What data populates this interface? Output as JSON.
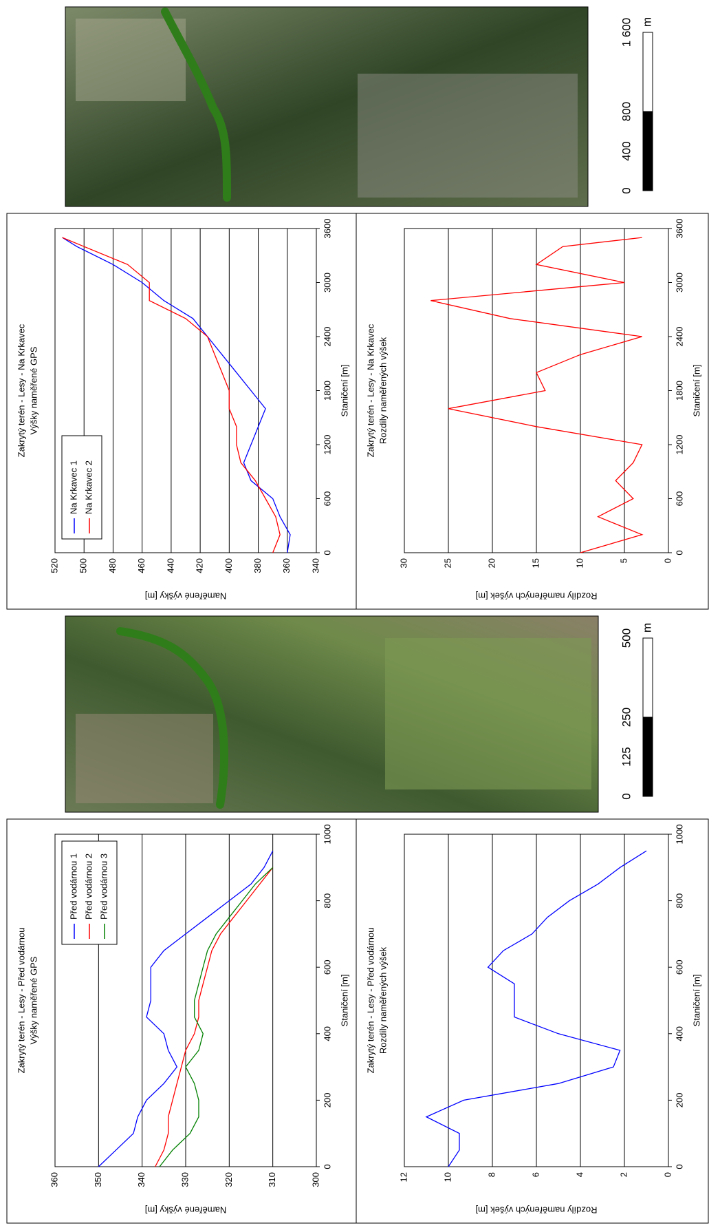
{
  "chart_data": [
    {
      "type": "line",
      "title": "Zakrytý terén - Lesy - Před vodárnou",
      "subtitle": "Výšky naměřené GPS",
      "xlabel": "Staničení [m]",
      "ylabel": "Naměřené výšky [m]",
      "x": [
        0,
        50,
        100,
        150,
        200,
        250,
        300,
        350,
        400,
        450,
        500,
        550,
        600,
        650,
        700,
        750,
        800,
        850,
        900,
        950
      ],
      "series": [
        {
          "name": "Před vodárnou 1",
          "color": "#0000ff",
          "values": [
            350,
            346,
            342,
            341,
            339,
            335,
            332,
            334,
            335,
            339,
            338,
            338,
            338,
            335,
            330,
            325,
            320,
            315,
            312,
            310
          ]
        },
        {
          "name": "Před vodárnou 2",
          "color": "#ff0000",
          "values": [
            337,
            335,
            334,
            334,
            333,
            332,
            331,
            330,
            328,
            327,
            327,
            326,
            325,
            324,
            322,
            319,
            316,
            313,
            310,
            null
          ]
        },
        {
          "name": "Před vodárnou 3",
          "color": "#008000",
          "values": [
            336,
            333,
            329,
            327,
            327,
            328,
            330,
            327,
            326,
            328,
            328,
            327,
            326,
            325,
            323,
            320,
            317,
            314,
            310,
            null
          ]
        }
      ],
      "xlim": [
        0,
        1000
      ],
      "xticks": [
        0,
        200,
        400,
        600,
        800,
        1000
      ],
      "ylim": [
        300,
        360
      ],
      "yticks": [
        300,
        310,
        320,
        330,
        340,
        350,
        360
      ],
      "grid": true,
      "legend": "upper right"
    },
    {
      "type": "line",
      "title": "Zakrytý terén - Lesy - Před vodárnou",
      "subtitle": "Rozdíly naměřených výšek",
      "xlabel": "Staničení [m]",
      "ylabel": "Rozdíly naměřených výšek [m]",
      "x": [
        0,
        50,
        100,
        150,
        200,
        250,
        300,
        350,
        400,
        450,
        500,
        550,
        600,
        650,
        700,
        750,
        800,
        850,
        900,
        950
      ],
      "values": [
        10,
        9.5,
        9.5,
        11,
        9.3,
        5,
        2.5,
        2.2,
        5,
        7,
        7,
        7,
        8.2,
        7.5,
        6.2,
        5.5,
        4.5,
        3.2,
        2.2,
        1
      ],
      "color": "#0000ff",
      "xlim": [
        0,
        1000
      ],
      "xticks": [
        0,
        200,
        400,
        600,
        800,
        1000
      ],
      "ylim": [
        0,
        12
      ],
      "yticks": [
        0,
        2,
        4,
        6,
        8,
        10,
        12
      ],
      "grid": true
    },
    {
      "type": "line",
      "title": "Zakrytý terén - Lesy - Na Krkavec",
      "subtitle": "Výšky naměřené GPS",
      "xlabel": "Staničení [m]",
      "ylabel": "Naměřené výšky [m]",
      "x": [
        0,
        200,
        400,
        600,
        800,
        1000,
        1200,
        1400,
        1600,
        1800,
        2000,
        2200,
        2400,
        2600,
        2800,
        3000,
        3200,
        3400,
        3500
      ],
      "series": [
        {
          "name": "Na Krkavec 1",
          "color": "#0000ff",
          "values": [
            360,
            358,
            365,
            370,
            385,
            390,
            385,
            380,
            375,
            385,
            395,
            405,
            415,
            425,
            445,
            460,
            480,
            505,
            515
          ]
        },
        {
          "name": "Na Krkavec 2",
          "color": "#ff0000",
          "values": [
            370,
            365,
            368,
            375,
            382,
            392,
            395,
            395,
            400,
            400,
            405,
            410,
            415,
            430,
            455,
            455,
            470,
            500,
            515
          ]
        }
      ],
      "xlim": [
        0,
        3600
      ],
      "xticks": [
        0,
        600,
        1200,
        1800,
        2400,
        3000,
        3600
      ],
      "ylim": [
        340,
        520
      ],
      "yticks": [
        340,
        360,
        380,
        400,
        420,
        440,
        460,
        480,
        500,
        520
      ],
      "grid": true,
      "legend": "upper left"
    },
    {
      "type": "line",
      "title": "Zakrytý terén - Lesy - Na Krkavec",
      "subtitle": "Rozdíly naměřených výšek",
      "xlabel": "Staničení [m]",
      "ylabel": "Rozdíly naměřených výšek [m]",
      "x": [
        0,
        200,
        400,
        600,
        800,
        1000,
        1200,
        1400,
        1600,
        1800,
        2000,
        2200,
        2400,
        2600,
        2800,
        3000,
        3200,
        3400,
        3500
      ],
      "values": [
        10,
        3,
        8,
        4,
        6,
        4,
        3,
        15,
        25,
        14,
        15,
        10,
        3,
        18,
        27,
        5,
        15,
        12,
        3
      ],
      "color": "#ff0000",
      "xlim": [
        0,
        3600
      ],
      "xticks": [
        0,
        600,
        1200,
        1800,
        2400,
        3000,
        3600
      ],
      "ylim": [
        0,
        30
      ],
      "yticks": [
        0,
        5,
        10,
        15,
        20,
        25,
        30
      ],
      "grid": true
    }
  ],
  "maps": [
    {
      "scale_labels": [
        "0",
        "125",
        "250",
        "500"
      ],
      "unit": "m"
    },
    {
      "scale_labels": [
        "0",
        "400",
        "800",
        "1 600"
      ],
      "unit": "m"
    }
  ]
}
